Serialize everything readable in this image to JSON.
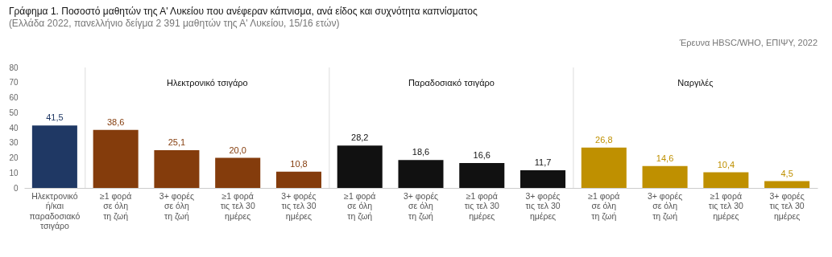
{
  "chart_data": {
    "type": "bar",
    "title": "Γράφημα 1. Ποσοστό μαθητών της Α' Λυκείου που ανέφεραν κάπνισμα, ανά είδος και συχνότητα καπνίσματος",
    "subtitle": "(Ελλάδα 2022, πανελλήνιο δείγμα 2 391 μαθητών της Α' Λυκείου, 15/16 ετών)",
    "annotations": [
      "Έρευνα HBSC/WHO, ΕΠΙΨΥ, 2022",
      "Ηλεκτρονικό τσιγάρο",
      "Παραδοσιακό τσιγάρο",
      "Ναργιλές"
    ],
    "categories": [
      "Ηλεκτρονικό\nή/και\nπαραδοσιακό\nτσιγάρο",
      "≥1 φορά\nσε όλη\nτη ζωή",
      "3+ φορές\nσε όλη\nτη ζωή",
      "≥1 φορά\nτις τελ 30\nημέρες",
      "3+ φορές\nτις τελ 30\nημέρες",
      "≥1 φορά\nσε όλη\nτη ζωή",
      "3+ φορές\nσε όλη\nτη ζωή",
      "≥1 φορά\nτις τελ 30\nημέρες",
      "3+ φορές\nτις τελ 30\nημέρες",
      "≥1 φορά\nσε όλη\nτη ζωή",
      "3+ φορές\nσε όλη\nτη ζωή",
      "≥1 φορά\nτις τελ 30\nημέρες",
      "3+ φορές\nτις τελ 30\nημέρες"
    ],
    "values": [
      41.5,
      38.6,
      25.1,
      20.0,
      10.8,
      28.2,
      18.6,
      16.6,
      11.7,
      26.8,
      14.6,
      10.4,
      4.5
    ],
    "value_labels": [
      "41,5",
      "38,6",
      "25,1",
      "20,0",
      "10,8",
      "28,2",
      "18,6",
      "16,6",
      "11,7",
      "26,8",
      "14,6",
      "10,4",
      "4,5"
    ],
    "colors": [
      "#1f3864",
      "#843c0c",
      "#843c0c",
      "#843c0c",
      "#843c0c",
      "#111111",
      "#111111",
      "#111111",
      "#111111",
      "#bf9000",
      "#bf9000",
      "#bf9000",
      "#bf9000"
    ],
    "ylim": [
      0,
      80
    ],
    "yticks": [
      0,
      10,
      20,
      30,
      40,
      50,
      60,
      70,
      80
    ]
  }
}
